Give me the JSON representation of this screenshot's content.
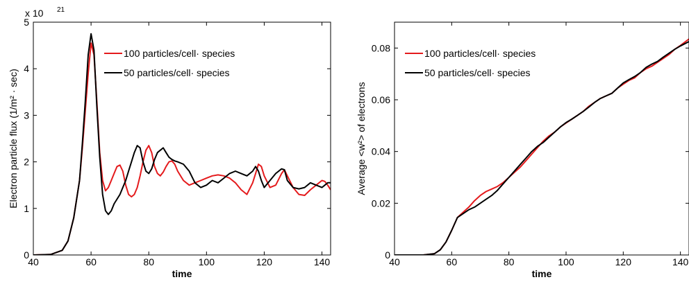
{
  "chart_data": [
    {
      "type": "line",
      "title": "",
      "xlabel": "time",
      "ylabel": "Electron particle flux (1/m² · sec)",
      "y_multiplier_label": "x 10",
      "y_multiplier_exp": "21",
      "xlim": [
        40,
        143
      ],
      "ylim": [
        0,
        5
      ],
      "xticks": [
        40,
        60,
        80,
        100,
        120,
        140
      ],
      "yticks": [
        0,
        1,
        2,
        3,
        4,
        5
      ],
      "ytick_labels": [
        "0",
        "1",
        "2",
        "3",
        "4",
        "5"
      ],
      "legend_position": "top-right",
      "series": [
        {
          "name": "100 particles/cell· species",
          "color": "#e41a1c",
          "x": [
            40,
            46,
            50,
            52,
            54,
            56,
            57,
            58,
            59,
            60,
            61,
            62,
            63,
            64,
            65,
            66,
            67,
            68,
            69,
            70,
            71,
            72,
            73,
            74,
            75,
            76,
            77,
            78,
            79,
            80,
            81,
            82,
            83,
            84,
            85,
            86,
            87,
            88,
            89,
            90,
            92,
            94,
            96,
            98,
            100,
            102,
            104,
            106,
            108,
            110,
            112,
            114,
            116,
            117,
            118,
            119,
            120,
            122,
            124,
            126,
            127,
            128,
            130,
            132,
            134,
            136,
            138,
            140,
            141,
            142,
            143
          ],
          "y": [
            0,
            0.01,
            0.1,
            0.3,
            0.8,
            1.6,
            2.3,
            3.1,
            3.9,
            4.55,
            4.3,
            3.3,
            2.2,
            1.6,
            1.38,
            1.45,
            1.6,
            1.75,
            1.9,
            1.93,
            1.8,
            1.5,
            1.3,
            1.25,
            1.3,
            1.45,
            1.7,
            2.0,
            2.25,
            2.35,
            2.2,
            1.9,
            1.75,
            1.7,
            1.78,
            1.9,
            2.0,
            2.02,
            1.95,
            1.8,
            1.6,
            1.5,
            1.55,
            1.6,
            1.65,
            1.7,
            1.72,
            1.7,
            1.65,
            1.55,
            1.4,
            1.3,
            1.55,
            1.75,
            1.95,
            1.9,
            1.7,
            1.45,
            1.5,
            1.75,
            1.83,
            1.7,
            1.45,
            1.3,
            1.28,
            1.4,
            1.5,
            1.6,
            1.58,
            1.5,
            1.4
          ]
        },
        {
          "name": "50 particles/cell· species",
          "color": "#000000",
          "x": [
            40,
            46,
            50,
            52,
            54,
            56,
            57,
            58,
            59,
            60,
            61,
            62,
            63,
            64,
            65,
            66,
            67,
            68,
            69,
            70,
            71,
            72,
            73,
            74,
            75,
            76,
            77,
            78,
            79,
            80,
            81,
            82,
            83,
            84,
            85,
            86,
            87,
            88,
            89,
            90,
            92,
            94,
            96,
            98,
            100,
            102,
            104,
            106,
            108,
            110,
            112,
            114,
            116,
            117,
            118,
            119,
            120,
            122,
            124,
            126,
            127,
            128,
            130,
            132,
            134,
            136,
            138,
            140,
            141,
            142,
            143
          ],
          "y": [
            0,
            0.01,
            0.1,
            0.3,
            0.8,
            1.6,
            2.4,
            3.3,
            4.3,
            4.75,
            4.4,
            3.2,
            2.1,
            1.3,
            0.95,
            0.87,
            0.95,
            1.1,
            1.2,
            1.3,
            1.45,
            1.6,
            1.8,
            2.0,
            2.2,
            2.35,
            2.3,
            2.0,
            1.8,
            1.75,
            1.85,
            2.05,
            2.2,
            2.25,
            2.3,
            2.2,
            2.1,
            2.05,
            2.02,
            2.0,
            1.95,
            1.8,
            1.55,
            1.45,
            1.5,
            1.6,
            1.55,
            1.65,
            1.75,
            1.8,
            1.75,
            1.7,
            1.8,
            1.9,
            1.8,
            1.6,
            1.45,
            1.6,
            1.75,
            1.85,
            1.83,
            1.6,
            1.45,
            1.42,
            1.45,
            1.55,
            1.5,
            1.45,
            1.5,
            1.55,
            1.55
          ]
        }
      ]
    },
    {
      "type": "line",
      "title": "",
      "xlabel": "time",
      "ylabel": "Average <w²> of electrons",
      "xlim": [
        40,
        143
      ],
      "ylim": [
        0,
        0.09
      ],
      "xticks": [
        40,
        60,
        80,
        100,
        120,
        140
      ],
      "yticks": [
        0,
        0.02,
        0.04,
        0.06,
        0.08
      ],
      "ytick_labels": [
        "0",
        "0.02",
        "0.04",
        "0.06",
        "0.08"
      ],
      "legend_position": "top-left",
      "series": [
        {
          "name": "100 particles/cell· species",
          "color": "#e41a1c",
          "x": [
            40,
            50,
            54,
            56,
            58,
            60,
            62,
            64,
            66,
            68,
            70,
            72,
            74,
            76,
            78,
            80,
            82,
            84,
            86,
            88,
            90,
            92,
            94,
            96,
            98,
            100,
            102,
            104,
            106,
            108,
            110,
            112,
            114,
            116,
            118,
            120,
            122,
            124,
            126,
            128,
            130,
            132,
            134,
            136,
            138,
            140,
            143
          ],
          "y": [
            0,
            0,
            0.0005,
            0.002,
            0.005,
            0.0095,
            0.0145,
            0.0165,
            0.0185,
            0.021,
            0.023,
            0.0245,
            0.0255,
            0.0265,
            0.028,
            0.03,
            0.032,
            0.034,
            0.0365,
            0.039,
            0.0415,
            0.044,
            0.046,
            0.0475,
            0.0495,
            0.051,
            0.0525,
            0.054,
            0.0555,
            0.0575,
            0.059,
            0.0605,
            0.0615,
            0.0625,
            0.0645,
            0.066,
            0.0675,
            0.0685,
            0.0705,
            0.072,
            0.073,
            0.0745,
            0.076,
            0.0775,
            0.0795,
            0.081,
            0.0835
          ]
        },
        {
          "name": "50 particles/cell· species",
          "color": "#000000",
          "x": [
            40,
            50,
            54,
            56,
            58,
            60,
            62,
            64,
            66,
            68,
            70,
            72,
            74,
            76,
            78,
            80,
            82,
            84,
            86,
            88,
            90,
            92,
            94,
            96,
            98,
            100,
            102,
            104,
            106,
            108,
            110,
            112,
            114,
            116,
            118,
            120,
            122,
            124,
            126,
            128,
            130,
            132,
            134,
            136,
            138,
            140,
            143
          ],
          "y": [
            0,
            0,
            0.0005,
            0.002,
            0.005,
            0.0095,
            0.0145,
            0.016,
            0.0175,
            0.0185,
            0.02,
            0.0215,
            0.023,
            0.025,
            0.0275,
            0.03,
            0.0325,
            0.035,
            0.0375,
            0.04,
            0.042,
            0.0435,
            0.0455,
            0.0475,
            0.0495,
            0.0512,
            0.0525,
            0.054,
            0.0555,
            0.0572,
            0.059,
            0.0605,
            0.0615,
            0.0625,
            0.0645,
            0.0665,
            0.0678,
            0.069,
            0.0705,
            0.0725,
            0.0738,
            0.0748,
            0.0765,
            0.078,
            0.0795,
            0.0808,
            0.0825
          ]
        }
      ]
    }
  ]
}
